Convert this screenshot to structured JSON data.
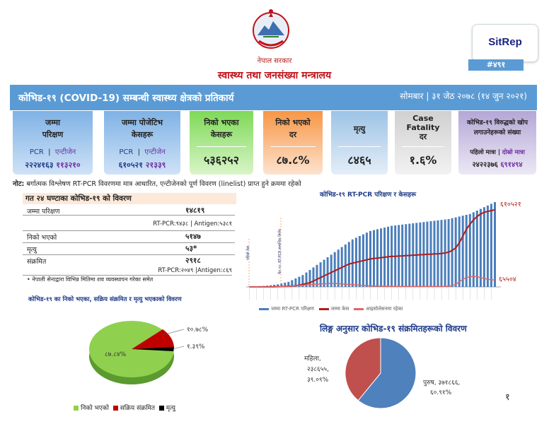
{
  "header": {
    "gov_name": "नेपाल सरकार",
    "ministry": "स्वास्थ्य तथा जनसंख्या मन्त्रालय",
    "sitrep_label": "SitRep",
    "sitrep_number": "#४९१"
  },
  "banner": {
    "title": "कोभिड-१९ (COVID-19) सम्बन्धी स्वास्थ्य क्षेत्रको प्रतिकार्य",
    "date": "सोमबार | ३१ जेठ २०७८ (१४ जुन २०२१)"
  },
  "cards": {
    "tests": {
      "label1": "जम्मा",
      "label2": "परिक्षण",
      "pcr_label": "PCR",
      "antigen_label": "एन्टीजेन",
      "pcr_value": "२२२४१६३",
      "antigen_value": "११३२१०"
    },
    "positive": {
      "label1": "जम्मा पोजेटिभ",
      "label2": "केसहरू",
      "pcr_label": "PCR",
      "antigen_label": "एन्टीजेन",
      "pcr_value": "६१०५२१",
      "antigen_value": "२१३३९"
    },
    "recovered": {
      "label1": "निको भएका",
      "label2": "केसहरू",
      "value": "५३६२५२"
    },
    "recovery_rate": {
      "label1": "निको भएको",
      "label2": "दर",
      "value": "८७.८%"
    },
    "deaths": {
      "label1": "मृत्यु",
      "value": "८४६५"
    },
    "cfr": {
      "label1": "Case",
      "label2": "Fatality",
      "label3": "दर",
      "value": "१.६%"
    },
    "vaccine": {
      "label1": "कोभिड-१९ विरुद्धको खोप",
      "label2": "लगाउनेहरूको संख्या",
      "first_label": "पहिलो मात्रा",
      "second_label": "दोस्रो मात्रा",
      "first_value": "२४२२३७६",
      "second_value": "६९१४९४"
    }
  },
  "note": {
    "bold": "नोट:",
    "text": " बर्गात्मक विश्लेषण RT-PCR विवरणमा मात्र आधारित, एन्टीजेनको पूर्ण विवरण (linelist) प्राप्त हुने क्रममा रहेको"
  },
  "last24": {
    "title": "गत २४ घण्टाका कोभिड-१९ को विवरण",
    "rows": [
      {
        "label": "जम्मा परिक्षण",
        "value": "१४८१९",
        "sub": "RT-PCR:९४३८ | Antigen:५३८१"
      },
      {
        "label": "निको भएको",
        "value": "५१४७",
        "sub": ""
      },
      {
        "label": "मृत्यु",
        "value": "५३*",
        "sub": ""
      },
      {
        "label": "संक्रमित",
        "value": "२९१८",
        "sub": "RT-PCR:२०४९ |Antigen:८६९"
      }
    ],
    "footnote": "• नेपाली सेनाद्वारा विभिन्न मितिमा शव व्यवस्थापन गरेका समेत"
  },
  "pie1": {
    "title": "कोभिड-१९ का निको भएका, सक्रिय संक्रमित र मृत्यु भएकाको विवरण",
    "labels": [
      "८७.८४%",
      "१०.७८%",
      "१.३९%"
    ],
    "legend": [
      "निको भएको",
      "सक्रिय संक्रमित",
      "मृत्यु"
    ]
  },
  "chart_data": [
    {
      "type": "bar",
      "title": "कोभिड-१९ RT-PCR परिक्षण र केसहरू",
      "series": [
        {
          "name": "जम्मा RT-PCR परिक्षण",
          "color": "#4a7ebb"
        },
        {
          "name": "जम्मा केस",
          "color": "#b01c1c"
        },
        {
          "name": "आइसोलेसनमा रहेका",
          "color": "#e06666"
        }
      ],
      "bar_values": [
        0.6,
        0.7,
        0.8,
        1,
        1.2,
        1.5,
        2,
        2.5,
        3,
        4,
        5,
        6,
        8,
        10,
        12,
        14,
        17,
        20,
        23,
        26,
        29,
        32,
        35,
        38,
        41,
        44,
        47,
        50,
        53,
        56,
        58,
        60,
        62,
        64,
        66,
        67,
        68,
        69,
        70,
        71,
        72,
        72.5,
        73,
        73.5,
        74,
        74.5,
        75,
        75.5,
        76,
        76.5,
        77,
        77.5,
        78,
        78.5,
        79,
        79.5,
        80,
        81,
        82,
        83,
        84,
        85,
        86,
        88,
        90,
        92,
        94,
        96,
        98,
        100
      ],
      "cases_values": [
        0,
        0,
        0,
        0,
        0,
        0,
        0,
        0.1,
        0.2,
        0.3,
        0.5,
        0.8,
        1,
        1.5,
        2,
        3,
        4,
        5,
        7,
        9,
        11,
        13,
        15,
        17,
        19,
        21,
        23,
        25,
        27,
        28,
        29,
        30,
        31,
        32,
        33,
        33.5,
        34,
        34.5,
        35,
        35.5,
        36,
        36,
        36.5,
        36.5,
        37,
        37,
        37.5,
        37.5,
        38,
        38,
        38.5,
        38.5,
        39,
        39,
        39.5,
        40,
        41,
        43,
        46,
        52,
        60,
        68,
        74,
        79,
        83,
        86,
        88,
        89,
        90,
        91
      ],
      "isolation_values": [
        0,
        0,
        0,
        0,
        0,
        0,
        0,
        0.1,
        0.2,
        0.3,
        0.5,
        0.7,
        1,
        1.3,
        1.6,
        2,
        2.3,
        2.6,
        3,
        3.2,
        3.5,
        3.7,
        3.9,
        4,
        4,
        3.8,
        3.5,
        3.2,
        3,
        2.7,
        2.4,
        2.1,
        1.8,
        1.5,
        1.3,
        1.1,
        1,
        0.9,
        0.8,
        0.7,
        0.6,
        0.6,
        0.5,
        0.5,
        0.5,
        0.5,
        0.5,
        0.5,
        0.5,
        0.5,
        0.5,
        0.5,
        0.5,
        0.5,
        0.5,
        0.6,
        0.8,
        1.5,
        3,
        6,
        9,
        11,
        12,
        12.5,
        12,
        11,
        10,
        9,
        8.5,
        8
      ],
      "end_labels": {
        "cases": "६१०५२१",
        "isolation": "६५५०४"
      },
      "annotations": [
        "पहिलो केस",
        "चैत ११: RT-PCR सम्बन्धित निर्णय"
      ]
    },
    {
      "type": "pie",
      "title": "लिङ्ग अनुसार कोभिड-१९ संक्रमितहरूको विवरण",
      "slices": [
        {
          "name": "पुरुष",
          "value": 60.91,
          "label1": "पुरुष, ३७१८६६,",
          "label2": "६०.९१%",
          "color": "#4f81bd"
        },
        {
          "name": "महिला",
          "value": 39.09,
          "label1": "महिला,",
          "label2": "२३८६५५,",
          "label3": "३९.०९%",
          "color": "#c0504d"
        }
      ]
    }
  ],
  "page_number": "१"
}
